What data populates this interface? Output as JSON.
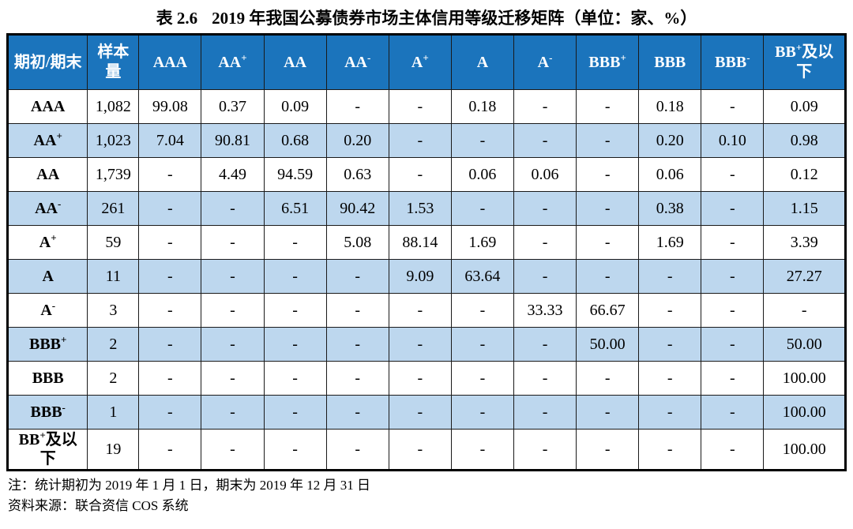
{
  "title": {
    "label": "表 2.6",
    "text": "2019 年我国公募债券市场主体信用等级迁移矩阵（单位：家、%）"
  },
  "table": {
    "corner_header": "期初/期末",
    "sample_header": "样本量",
    "columns": [
      {
        "base": "AAA",
        "sup": ""
      },
      {
        "base": "AA",
        "sup": "+"
      },
      {
        "base": "AA",
        "sup": ""
      },
      {
        "base": "AA",
        "sup": "-"
      },
      {
        "base": "A",
        "sup": "+"
      },
      {
        "base": "A",
        "sup": ""
      },
      {
        "base": "A",
        "sup": "-"
      },
      {
        "base": "BBB",
        "sup": "+"
      },
      {
        "base": "BBB",
        "sup": ""
      },
      {
        "base": "BBB",
        "sup": "-"
      },
      {
        "base": "BB",
        "sup": "+",
        "suffix": "及以下"
      }
    ],
    "rows": [
      {
        "label": {
          "base": "AAA",
          "sup": ""
        },
        "sample": "1,082",
        "values": [
          "99.08",
          "0.37",
          "0.09",
          "-",
          "-",
          "0.18",
          "-",
          "-",
          "0.18",
          "-",
          "0.09"
        ]
      },
      {
        "label": {
          "base": "AA",
          "sup": "+"
        },
        "sample": "1,023",
        "values": [
          "7.04",
          "90.81",
          "0.68",
          "0.20",
          "-",
          "-",
          "-",
          "-",
          "0.20",
          "0.10",
          "0.98"
        ]
      },
      {
        "label": {
          "base": "AA",
          "sup": ""
        },
        "sample": "1,739",
        "values": [
          "-",
          "4.49",
          "94.59",
          "0.63",
          "-",
          "0.06",
          "0.06",
          "-",
          "0.06",
          "-",
          "0.12"
        ]
      },
      {
        "label": {
          "base": "AA",
          "sup": "-"
        },
        "sample": "261",
        "values": [
          "-",
          "-",
          "6.51",
          "90.42",
          "1.53",
          "-",
          "-",
          "-",
          "0.38",
          "-",
          "1.15"
        ]
      },
      {
        "label": {
          "base": "A",
          "sup": "+"
        },
        "sample": "59",
        "values": [
          "-",
          "-",
          "-",
          "5.08",
          "88.14",
          "1.69",
          "-",
          "-",
          "1.69",
          "-",
          "3.39"
        ]
      },
      {
        "label": {
          "base": "A",
          "sup": ""
        },
        "sample": "11",
        "values": [
          "-",
          "-",
          "-",
          "-",
          "9.09",
          "63.64",
          "-",
          "-",
          "-",
          "-",
          "27.27"
        ]
      },
      {
        "label": {
          "base": "A",
          "sup": "-"
        },
        "sample": "3",
        "values": [
          "-",
          "-",
          "-",
          "-",
          "-",
          "-",
          "33.33",
          "66.67",
          "-",
          "-",
          "-"
        ]
      },
      {
        "label": {
          "base": "BBB",
          "sup": "+"
        },
        "sample": "2",
        "values": [
          "-",
          "-",
          "-",
          "-",
          "-",
          "-",
          "-",
          "50.00",
          "-",
          "-",
          "50.00"
        ]
      },
      {
        "label": {
          "base": "BBB",
          "sup": ""
        },
        "sample": "2",
        "values": [
          "-",
          "-",
          "-",
          "-",
          "-",
          "-",
          "-",
          "-",
          "-",
          "-",
          "100.00"
        ]
      },
      {
        "label": {
          "base": "BBB",
          "sup": "-"
        },
        "sample": "1",
        "values": [
          "-",
          "-",
          "-",
          "-",
          "-",
          "-",
          "-",
          "-",
          "-",
          "-",
          "100.00"
        ]
      },
      {
        "label": {
          "base": "BB",
          "sup": "+",
          "suffix": "及以下"
        },
        "sample": "19",
        "values": [
          "-",
          "-",
          "-",
          "-",
          "-",
          "-",
          "-",
          "-",
          "-",
          "-",
          "100.00"
        ]
      }
    ]
  },
  "notes": [
    "注：统计期初为 2019 年 1 月 1 日，期末为 2019 年 12 月 31 日",
    "资料来源：联合资信 COS 系统"
  ],
  "colors": {
    "header_bg": "#1B74BC",
    "header_text": "#FFFFFF",
    "row_alt_bg": "#BDD7EE",
    "row_bg": "#FFFFFF",
    "border": "#1A1A1A"
  }
}
